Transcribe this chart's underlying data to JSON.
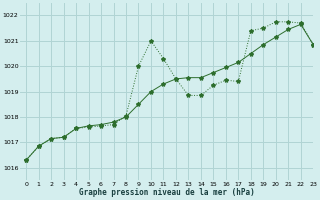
{
  "title": "Graphe pression niveau de la mer (hPa)",
  "background_color": "#d4eeee",
  "grid_color": "#b0d4d4",
  "line_color": "#2d6e2d",
  "marker_color": "#2d6e2d",
  "xlim": [
    -0.5,
    23
  ],
  "ylim": [
    1015.5,
    1022.5
  ],
  "yticks": [
    1016,
    1017,
    1018,
    1019,
    1020,
    1021,
    1022
  ],
  "xticks": [
    0,
    1,
    2,
    3,
    4,
    5,
    6,
    7,
    8,
    9,
    10,
    11,
    12,
    13,
    14,
    15,
    16,
    17,
    18,
    19,
    20,
    21,
    22,
    23
  ],
  "series1_x": [
    0,
    1,
    2,
    3,
    4,
    5,
    6,
    7,
    8,
    9,
    10,
    11,
    12,
    13,
    14,
    15,
    16,
    17,
    18,
    19,
    20,
    21,
    22,
    23
  ],
  "series1_y": [
    1016.3,
    1016.85,
    1017.15,
    1017.2,
    1017.55,
    1017.6,
    1017.65,
    1017.7,
    1018.05,
    1020.0,
    1021.0,
    1020.3,
    1019.5,
    1018.85,
    1018.85,
    1019.25,
    1019.45,
    1019.4,
    1021.4,
    1021.5,
    1021.75,
    1021.75,
    1021.7,
    1020.85
  ],
  "series2_x": [
    0,
    1,
    2,
    3,
    4,
    5,
    6,
    7,
    8,
    9,
    10,
    11,
    12,
    13,
    14,
    15,
    16,
    17,
    18,
    19,
    20,
    21,
    22,
    23
  ],
  "series2_y": [
    1016.3,
    1016.85,
    1017.15,
    1017.2,
    1017.55,
    1017.65,
    1017.7,
    1017.8,
    1018.0,
    1018.5,
    1019.0,
    1019.3,
    1019.5,
    1019.55,
    1019.55,
    1019.75,
    1019.95,
    1020.15,
    1020.5,
    1020.85,
    1021.15,
    1021.45,
    1021.65,
    1020.85
  ]
}
